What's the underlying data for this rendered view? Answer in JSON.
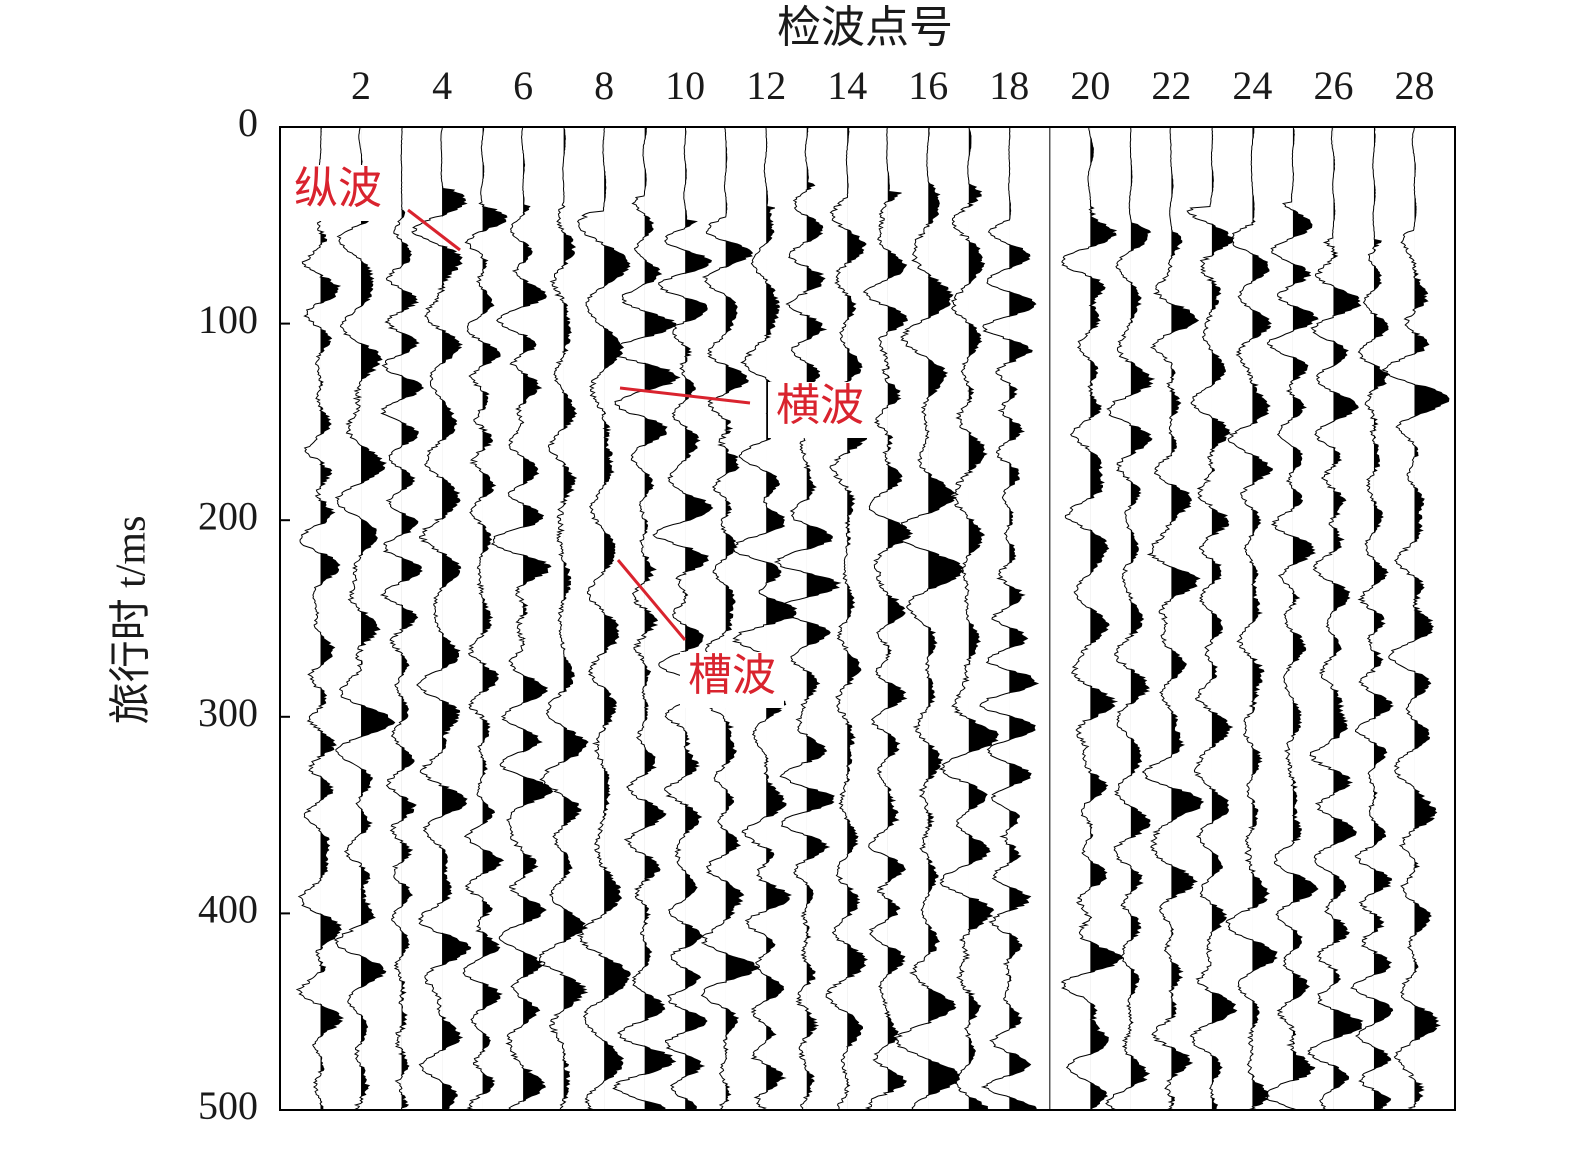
{
  "chart_data": {
    "type": "wiggle",
    "x_label": "检波点号",
    "y_label": "旅行时 t/ms",
    "xlim": [
      0,
      29
    ],
    "xticks": [
      2,
      4,
      6,
      8,
      10,
      12,
      14,
      16,
      18,
      20,
      22,
      24,
      26,
      28
    ],
    "ylim": [
      0,
      500
    ],
    "yticks": [
      0,
      100,
      200,
      300,
      400,
      500
    ],
    "y_inverted": true,
    "traces": {
      "x": [
        1,
        2,
        3,
        4,
        5,
        6,
        7,
        8,
        9,
        10,
        11,
        12,
        13,
        14,
        15,
        16,
        17,
        18,
        19,
        20,
        21,
        22,
        23,
        24,
        25,
        26,
        27,
        28
      ],
      "live": [
        true,
        true,
        true,
        true,
        true,
        true,
        true,
        true,
        true,
        true,
        true,
        true,
        true,
        true,
        true,
        true,
        true,
        true,
        false,
        true,
        true,
        true,
        true,
        true,
        true,
        true,
        true,
        true
      ],
      "color": "#000000"
    },
    "annotations": [
      {
        "text": "纵波"
      },
      {
        "text": "横波"
      },
      {
        "text": "槽波"
      }
    ],
    "annotation_color": "#d9232e"
  }
}
